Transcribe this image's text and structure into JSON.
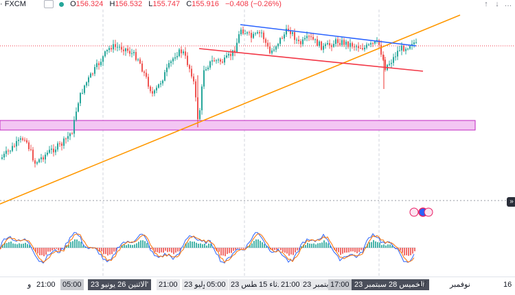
{
  "header": {
    "symbol": "· FXCM",
    "open_key": "O",
    "open": "156.324",
    "high_key": "H",
    "high": "156.532",
    "low_key": "L",
    "low": "155.747",
    "close_key": "C",
    "close": "155.916",
    "change": "−0.408 (−0.26%)",
    "btn_up": "↑",
    "btn_down": "↓",
    "btn_more": "…"
  },
  "colors": {
    "up": "#26a69a",
    "down": "#ef5350",
    "channel_upper": "#2962ff",
    "channel_lower": "#f23645",
    "trendline": "#ff9800",
    "zone_fill": "#f3c6f3",
    "zone_border": "#c026c0",
    "osc_fast": "#2962ff",
    "osc_slow": "#ff6d00"
  },
  "axis": {
    "labels": [
      "و",
      "21:00",
      "05:00",
      "الاثنين 26 يونيو 23'",
      "21:00",
      "وليو 23'",
      "05:00",
      "أغسطس 23'",
      "دثاء 15",
      "21:00",
      "بتمبر 23'",
      "17:00",
      "الخميس 28 سبتمبر 23'",
      "17",
      "نوفمبر",
      "16"
    ]
  }
}
